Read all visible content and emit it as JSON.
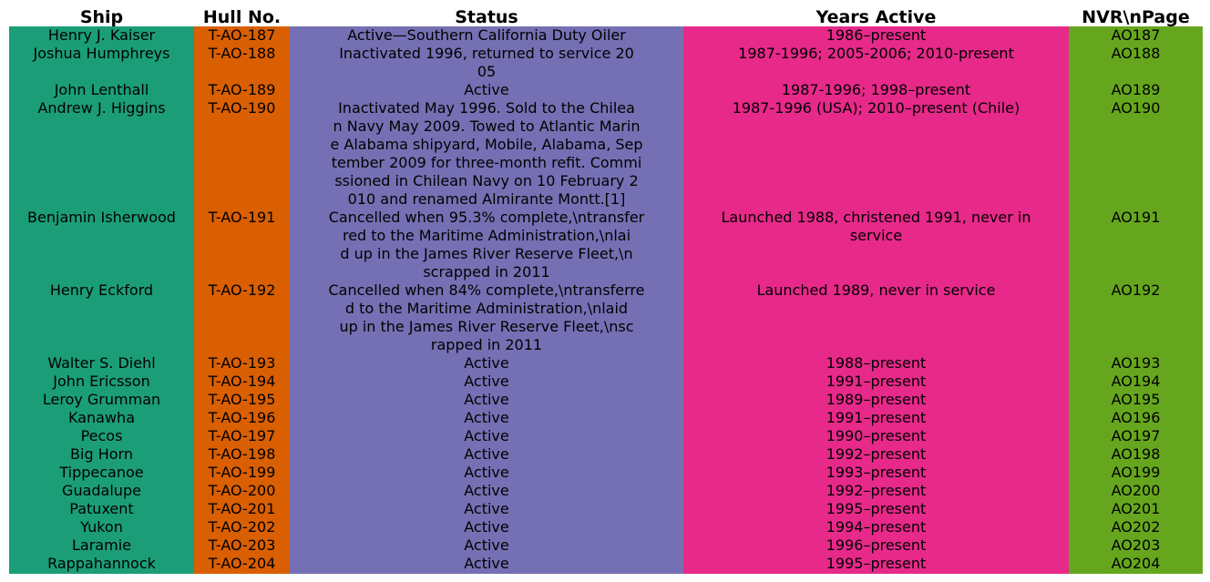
{
  "table": {
    "headers": [
      "Ship",
      "Hull No.",
      "Status",
      "Years Active",
      "NVR\\nPage"
    ],
    "column_colors": [
      "#1b9e77",
      "#d95f02",
      "#7570b3",
      "#e7298a",
      "#66a61e"
    ],
    "rows": [
      {
        "ship": "Henry J. Kaiser",
        "hull": "T-AO-187",
        "status": "Active—Southern California Duty Oiler",
        "years": "1986–present",
        "nvr": "AO187"
      },
      {
        "ship": "Joshua Humphreys",
        "hull": "T-AO-188",
        "status": "Inactivated 1996, returned to service 20\n05",
        "years": "1987-1996; 2005-2006; 2010-present",
        "nvr": "AO188"
      },
      {
        "ship": "John Lenthall",
        "hull": "T-AO-189",
        "status": "Active",
        "years": "1987-1996; 1998–present",
        "nvr": "AO189"
      },
      {
        "ship": "Andrew J. Higgins",
        "hull": "T-AO-190",
        "status": "Inactivated May 1996. Sold to the Chilea\nn Navy May 2009. Towed to Atlantic Marin\ne Alabama shipyard, Mobile, Alabama, Sep\ntember 2009 for three-month refit. Commi\nssioned in Chilean Navy on 10 February 2\n010 and renamed Almirante Montt.[1]",
        "years": "1987-1996 (USA); 2010–present (Chile)",
        "nvr": "AO190"
      },
      {
        "ship": "Benjamin Isherwood",
        "hull": "T-AO-191",
        "status": "Cancelled when 95.3% complete,\\ntransfer\nred to the Maritime Administration,\\nlai\nd up in the James River Reserve Fleet,\\n\nscrapped in 2011",
        "years": "Launched 1988, christened 1991, never in\nservice",
        "nvr": "AO191"
      },
      {
        "ship": "Henry Eckford",
        "hull": "T-AO-192",
        "status": "Cancelled when 84% complete,\\ntransferre\nd to the Maritime Administration,\\nlaid\nup in the James River Reserve Fleet,\\nsc\nrapped in 2011",
        "years": "Launched 1989, never in service",
        "nvr": "AO192"
      },
      {
        "ship": "Walter S. Diehl",
        "hull": "T-AO-193",
        "status": "Active",
        "years": "1988–present",
        "nvr": "AO193"
      },
      {
        "ship": "John Ericsson",
        "hull": "T-AO-194",
        "status": "Active",
        "years": "1991–present",
        "nvr": "AO194"
      },
      {
        "ship": "Leroy Grumman",
        "hull": "T-AO-195",
        "status": "Active",
        "years": "1989–present",
        "nvr": "AO195"
      },
      {
        "ship": "Kanawha",
        "hull": "T-AO-196",
        "status": "Active",
        "years": "1991–present",
        "nvr": "AO196"
      },
      {
        "ship": "Pecos",
        "hull": "T-AO-197",
        "status": "Active",
        "years": "1990–present",
        "nvr": "AO197"
      },
      {
        "ship": "Big Horn",
        "hull": "T-AO-198",
        "status": "Active",
        "years": "1992–present",
        "nvr": "AO198"
      },
      {
        "ship": "Tippecanoe",
        "hull": "T-AO-199",
        "status": "Active",
        "years": "1993–present",
        "nvr": "AO199"
      },
      {
        "ship": "Guadalupe",
        "hull": "T-AO-200",
        "status": "Active",
        "years": "1992–present",
        "nvr": "AO200"
      },
      {
        "ship": "Patuxent",
        "hull": "T-AO-201",
        "status": "Active",
        "years": "1995–present",
        "nvr": "AO201"
      },
      {
        "ship": "Yukon",
        "hull": "T-AO-202",
        "status": "Active",
        "years": "1994–present",
        "nvr": "AO202"
      },
      {
        "ship": "Laramie",
        "hull": "T-AO-203",
        "status": "Active",
        "years": "1996–present",
        "nvr": "AO203"
      },
      {
        "ship": "Rappahannock",
        "hull": "T-AO-204",
        "status": "Active",
        "years": "1995–present",
        "nvr": "AO204"
      }
    ]
  },
  "chart_data": {
    "type": "table",
    "columns": [
      "Ship",
      "Hull No.",
      "Status",
      "Years Active",
      "NVR\\nPage"
    ],
    "rows": [
      [
        "Henry J. Kaiser",
        "T-AO-187",
        "Active—Southern California Duty Oiler",
        "1986–present",
        "AO187"
      ],
      [
        "Joshua Humphreys",
        "T-AO-188",
        "Inactivated 1996, returned to service 2005",
        "1987-1996; 2005-2006; 2010-present",
        "AO188"
      ],
      [
        "John Lenthall",
        "T-AO-189",
        "Active",
        "1987-1996; 1998–present",
        "AO189"
      ],
      [
        "Andrew J. Higgins",
        "T-AO-190",
        "Inactivated May 1996. Sold to the Chilean Navy May 2009. Towed to Atlantic Marine Alabama shipyard, Mobile, Alabama, September 2009 for three-month refit. Commissioned in Chilean Navy on 10 February 2010 and renamed Almirante Montt.[1]",
        "1987-1996 (USA); 2010–present (Chile)",
        "AO190"
      ],
      [
        "Benjamin Isherwood",
        "T-AO-191",
        "Cancelled when 95.3% complete,\\ntransferred to the Maritime Administration,\\nlaid up in the James River Reserve Fleet,\\nscrapped in 2011",
        "Launched 1988, christened 1991, never in service",
        "AO191"
      ],
      [
        "Henry Eckford",
        "T-AO-192",
        "Cancelled when 84% complete,\\ntransferred to the Maritime Administration,\\nlaid up in the James River Reserve Fleet,\\nscrapped in 2011",
        "Launched 1989, never in service",
        "AO192"
      ],
      [
        "Walter S. Diehl",
        "T-AO-193",
        "Active",
        "1988–present",
        "AO193"
      ],
      [
        "John Ericsson",
        "T-AO-194",
        "Active",
        "1991–present",
        "AO194"
      ],
      [
        "Leroy Grumman",
        "T-AO-195",
        "Active",
        "1989–present",
        "AO195"
      ],
      [
        "Kanawha",
        "T-AO-196",
        "Active",
        "1991–present",
        "AO196"
      ],
      [
        "Pecos",
        "T-AO-197",
        "Active",
        "1990–present",
        "AO197"
      ],
      [
        "Big Horn",
        "T-AO-198",
        "Active",
        "1992–present",
        "AO198"
      ],
      [
        "Tippecanoe",
        "T-AO-199",
        "Active",
        "1993–present",
        "AO199"
      ],
      [
        "Guadalupe",
        "T-AO-200",
        "Active",
        "1992–present",
        "AO200"
      ],
      [
        "Patuxent",
        "T-AO-201",
        "Active",
        "1995–present",
        "AO201"
      ],
      [
        "Yukon",
        "T-AO-202",
        "Active",
        "1994–present",
        "AO202"
      ],
      [
        "Laramie",
        "T-AO-203",
        "Active",
        "1996–present",
        "AO203"
      ],
      [
        "Rappahannock",
        "T-AO-204",
        "Active",
        "1995–present",
        "AO204"
      ]
    ]
  }
}
